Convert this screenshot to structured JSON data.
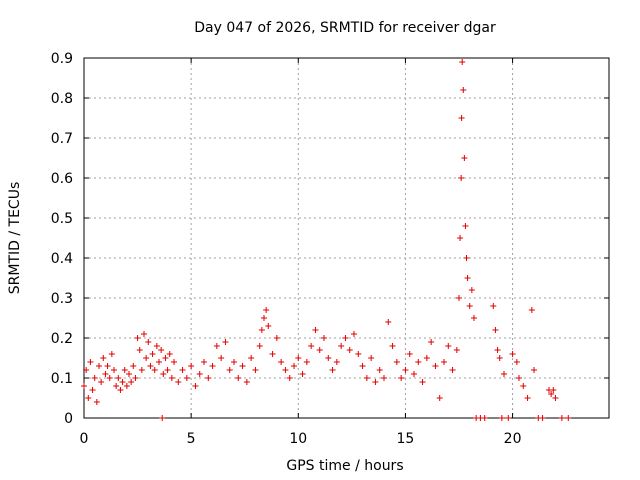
{
  "chart_data": {
    "type": "scatter",
    "title": "Day 047 of 2026, SRMTID for receiver dgar",
    "xlabel": "GPS time / hours",
    "ylabel": "SRMTID / TECUs",
    "xlim": [
      0,
      24.5
    ],
    "ylim": [
      0,
      0.9
    ],
    "xticks": [
      0,
      5,
      10,
      15,
      20
    ],
    "xtick_labels": [
      "0",
      "5",
      "10",
      "15",
      "20"
    ],
    "yticks": [
      0,
      0.1,
      0.2,
      0.3,
      0.4,
      0.5,
      0.6,
      0.7,
      0.8,
      0.9
    ],
    "ytick_labels": [
      "0",
      "0.1",
      "0.2",
      "0.3",
      "0.4",
      "0.5",
      "0.6",
      "0.7",
      "0.8",
      "0.9"
    ],
    "grid": true,
    "marker": "+",
    "color": "#e00000",
    "series": [
      {
        "name": "SRMTID",
        "points": [
          [
            0.0,
            0.08
          ],
          [
            0.1,
            0.12
          ],
          [
            0.2,
            0.05
          ],
          [
            0.3,
            0.14
          ],
          [
            0.4,
            0.07
          ],
          [
            0.5,
            0.1
          ],
          [
            0.6,
            0.04
          ],
          [
            0.7,
            0.13
          ],
          [
            0.8,
            0.09
          ],
          [
            0.9,
            0.15
          ],
          [
            1.0,
            0.11
          ],
          [
            1.1,
            0.13
          ],
          [
            1.2,
            0.1
          ],
          [
            1.3,
            0.16
          ],
          [
            1.4,
            0.12
          ],
          [
            1.5,
            0.08
          ],
          [
            1.6,
            0.1
          ],
          [
            1.7,
            0.07
          ],
          [
            1.8,
            0.09
          ],
          [
            1.9,
            0.12
          ],
          [
            2.0,
            0.08
          ],
          [
            2.1,
            0.11
          ],
          [
            2.2,
            0.09
          ],
          [
            2.3,
            0.13
          ],
          [
            2.4,
            0.1
          ],
          [
            2.5,
            0.2
          ],
          [
            2.6,
            0.17
          ],
          [
            2.7,
            0.12
          ],
          [
            2.8,
            0.21
          ],
          [
            2.9,
            0.15
          ],
          [
            3.0,
            0.19
          ],
          [
            3.1,
            0.13
          ],
          [
            3.2,
            0.16
          ],
          [
            3.3,
            0.12
          ],
          [
            3.4,
            0.18
          ],
          [
            3.5,
            0.14
          ],
          [
            3.6,
            0.17
          ],
          [
            3.65,
            0.0
          ],
          [
            3.7,
            0.11
          ],
          [
            3.8,
            0.15
          ],
          [
            3.9,
            0.12
          ],
          [
            4.0,
            0.16
          ],
          [
            4.1,
            0.1
          ],
          [
            4.2,
            0.14
          ],
          [
            4.4,
            0.09
          ],
          [
            4.6,
            0.12
          ],
          [
            4.8,
            0.1
          ],
          [
            5.0,
            0.13
          ],
          [
            5.2,
            0.08
          ],
          [
            5.4,
            0.11
          ],
          [
            5.6,
            0.14
          ],
          [
            5.8,
            0.1
          ],
          [
            6.0,
            0.13
          ],
          [
            6.2,
            0.18
          ],
          [
            6.4,
            0.15
          ],
          [
            6.6,
            0.19
          ],
          [
            6.8,
            0.12
          ],
          [
            7.0,
            0.14
          ],
          [
            7.2,
            0.1
          ],
          [
            7.4,
            0.13
          ],
          [
            7.6,
            0.09
          ],
          [
            7.8,
            0.15
          ],
          [
            8.0,
            0.12
          ],
          [
            8.2,
            0.18
          ],
          [
            8.3,
            0.22
          ],
          [
            8.4,
            0.25
          ],
          [
            8.5,
            0.27
          ],
          [
            8.6,
            0.23
          ],
          [
            8.8,
            0.16
          ],
          [
            9.0,
            0.2
          ],
          [
            9.2,
            0.14
          ],
          [
            9.4,
            0.12
          ],
          [
            9.6,
            0.1
          ],
          [
            9.8,
            0.13
          ],
          [
            10.0,
            0.15
          ],
          [
            10.2,
            0.11
          ],
          [
            10.4,
            0.14
          ],
          [
            10.6,
            0.18
          ],
          [
            10.8,
            0.22
          ],
          [
            11.0,
            0.17
          ],
          [
            11.2,
            0.2
          ],
          [
            11.4,
            0.15
          ],
          [
            11.6,
            0.12
          ],
          [
            11.8,
            0.14
          ],
          [
            12.0,
            0.18
          ],
          [
            12.2,
            0.2
          ],
          [
            12.4,
            0.17
          ],
          [
            12.6,
            0.21
          ],
          [
            12.8,
            0.16
          ],
          [
            13.0,
            0.13
          ],
          [
            13.2,
            0.1
          ],
          [
            13.4,
            0.15
          ],
          [
            13.6,
            0.09
          ],
          [
            13.8,
            0.12
          ],
          [
            14.0,
            0.1
          ],
          [
            14.2,
            0.24
          ],
          [
            14.4,
            0.18
          ],
          [
            14.6,
            0.14
          ],
          [
            14.8,
            0.1
          ],
          [
            15.0,
            0.12
          ],
          [
            15.2,
            0.16
          ],
          [
            15.4,
            0.11
          ],
          [
            15.6,
            0.14
          ],
          [
            15.8,
            0.09
          ],
          [
            16.0,
            0.15
          ],
          [
            16.2,
            0.19
          ],
          [
            16.4,
            0.13
          ],
          [
            16.6,
            0.05
          ],
          [
            16.8,
            0.14
          ],
          [
            17.0,
            0.18
          ],
          [
            17.2,
            0.12
          ],
          [
            17.4,
            0.17
          ],
          [
            17.5,
            0.3
          ],
          [
            17.55,
            0.45
          ],
          [
            17.6,
            0.6
          ],
          [
            17.62,
            0.75
          ],
          [
            17.65,
            0.89
          ],
          [
            17.7,
            0.82
          ],
          [
            17.75,
            0.65
          ],
          [
            17.8,
            0.48
          ],
          [
            17.85,
            0.4
          ],
          [
            17.9,
            0.35
          ],
          [
            18.0,
            0.28
          ],
          [
            18.1,
            0.32
          ],
          [
            18.2,
            0.25
          ],
          [
            18.3,
            0.0
          ],
          [
            18.5,
            0.0
          ],
          [
            18.7,
            0.0
          ],
          [
            19.1,
            0.28
          ],
          [
            19.2,
            0.22
          ],
          [
            19.3,
            0.17
          ],
          [
            19.4,
            0.15
          ],
          [
            19.5,
            0.0
          ],
          [
            19.6,
            0.11
          ],
          [
            19.8,
            0.0
          ],
          [
            20.0,
            0.16
          ],
          [
            20.2,
            0.14
          ],
          [
            20.3,
            0.1
          ],
          [
            20.5,
            0.08
          ],
          [
            20.7,
            0.05
          ],
          [
            20.9,
            0.27
          ],
          [
            21.0,
            0.12
          ],
          [
            21.2,
            0.0
          ],
          [
            21.4,
            0.0
          ],
          [
            21.7,
            0.07
          ],
          [
            21.8,
            0.06
          ],
          [
            21.9,
            0.07
          ],
          [
            22.0,
            0.05
          ],
          [
            22.3,
            0.0
          ],
          [
            22.6,
            0.0
          ]
        ]
      }
    ]
  }
}
